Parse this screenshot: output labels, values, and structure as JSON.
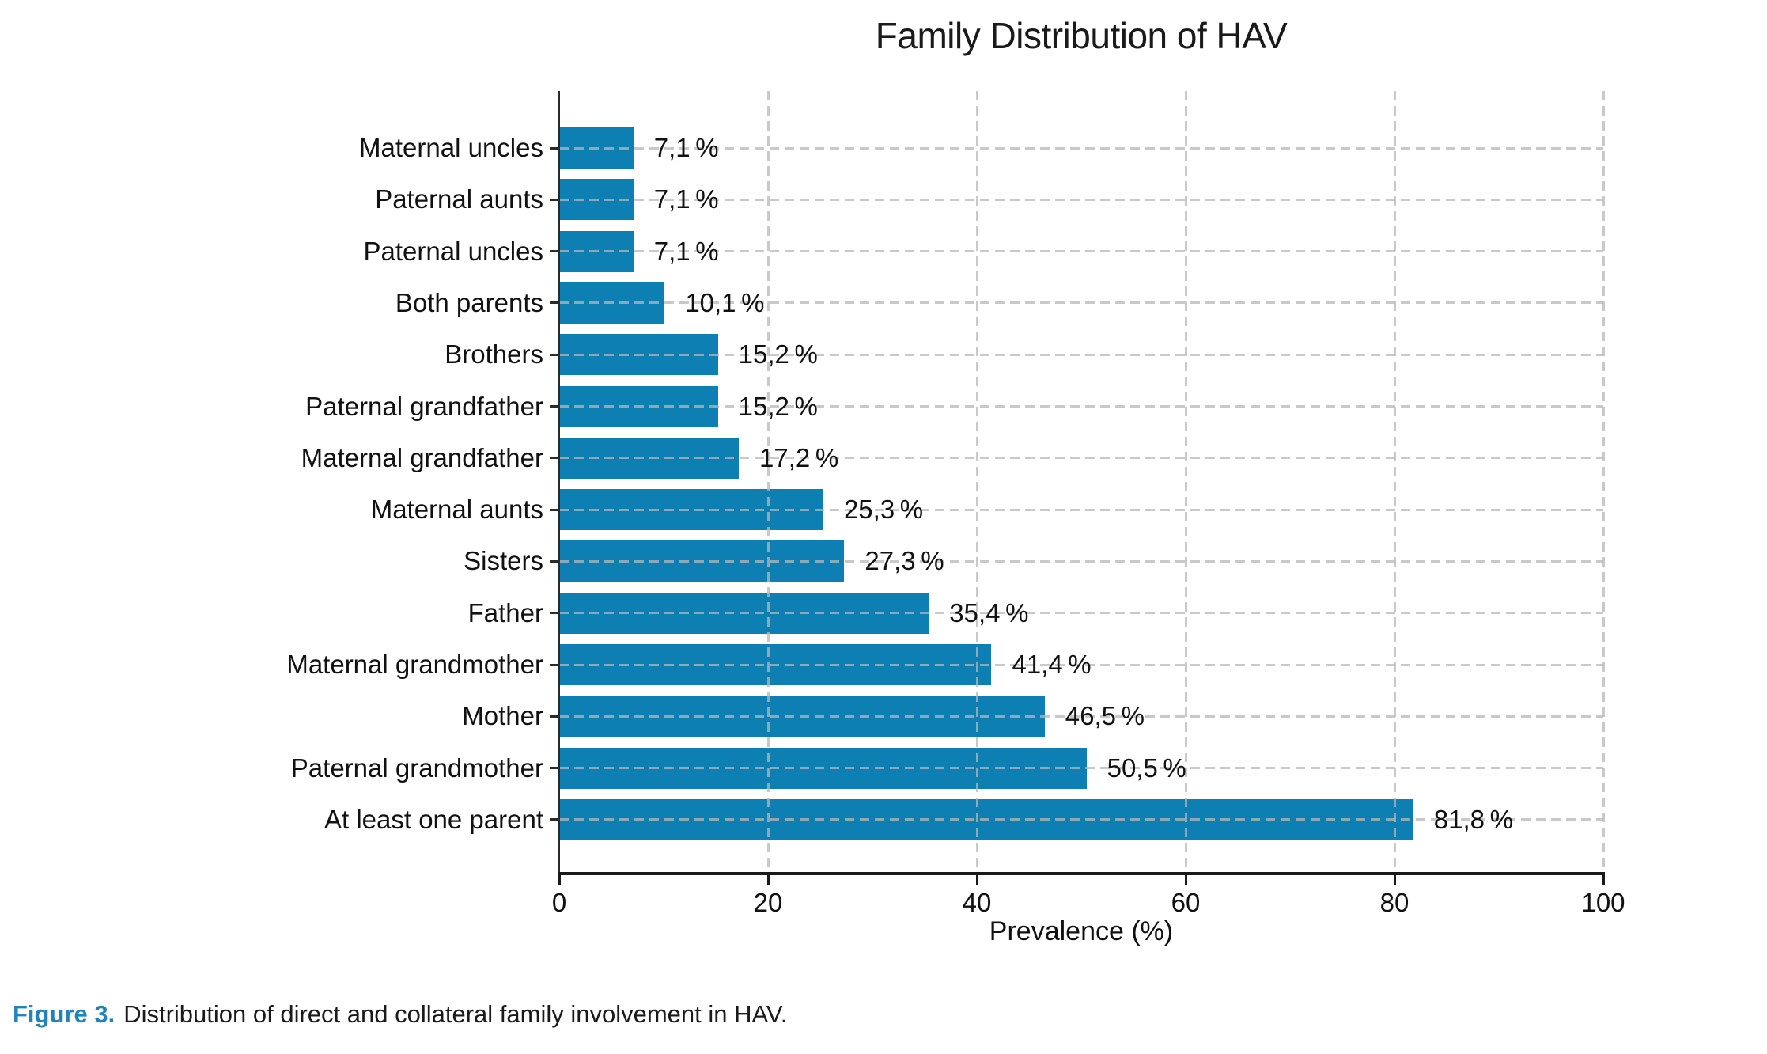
{
  "chart_data": {
    "type": "bar",
    "orientation": "horizontal",
    "title": "Family Distribution of HAV",
    "xlabel": "Prevalence (%)",
    "xlim": [
      0,
      100
    ],
    "x_ticks": [
      0,
      20,
      40,
      60,
      80,
      100
    ],
    "grid": {
      "vertical": true,
      "horizontal": true,
      "style": "dashed",
      "color": "#c9c9c9",
      "drawn_over_bars": true
    },
    "legend": "none",
    "bar_color": "#0d7fb2",
    "categories": [
      "Maternal uncles",
      "Paternal aunts",
      "Paternal uncles",
      "Both parents",
      "Brothers",
      "Paternal grandfather",
      "Maternal grandfather",
      "Maternal aunts",
      "Sisters",
      "Father",
      "Maternal grandmother",
      "Mother",
      "Paternal grandmother",
      "At least one parent"
    ],
    "values": [
      7.1,
      7.1,
      7.1,
      10.1,
      15.2,
      15.2,
      17.2,
      25.3,
      27.3,
      35.4,
      41.4,
      46.5,
      50.5,
      81.8
    ],
    "value_labels": [
      "7,1 %",
      "7,1 %",
      "7,1 %",
      "10,1 %",
      "15,2 %",
      "15,2 %",
      "17,2 %",
      "25,3 %",
      "27,3 %",
      "35,4 %",
      "41,4 %",
      "46,5 %",
      "50,5 %",
      "81,8 %"
    ]
  },
  "caption": {
    "label": "Figure 3.",
    "text": "Distribution of direct and collateral family involvement in HAV.",
    "label_color": "#2183b9"
  }
}
